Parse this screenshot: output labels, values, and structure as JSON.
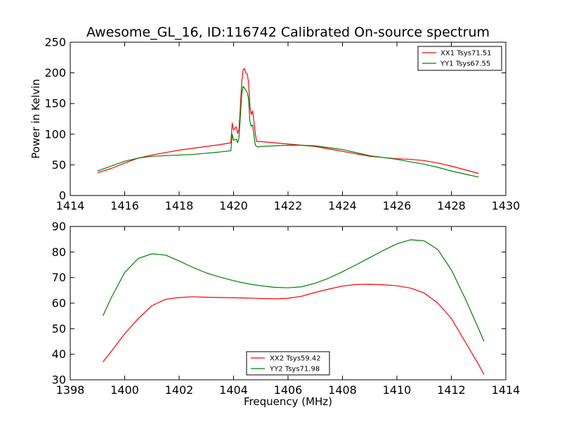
{
  "chart_data": [
    {
      "type": "line",
      "title": "Awesome_GL_16, ID:116742 Calibrated On-source spectrum",
      "xlabel": "",
      "ylabel": "Power in Kelvin",
      "xlim": [
        1414,
        1430
      ],
      "ylim": [
        0,
        250
      ],
      "xticks": [
        "1414",
        "1416",
        "1418",
        "1420",
        "1422",
        "1424",
        "1426",
        "1428",
        "1430"
      ],
      "yticks": [
        "0",
        "50",
        "100",
        "150",
        "200",
        "250"
      ],
      "grid": false,
      "legend_position": "top-right",
      "series": [
        {
          "name": "XX1 Tsys71.51",
          "color": "#ff0000",
          "x": [
            1415.0,
            1415.5,
            1416.0,
            1416.5,
            1417.0,
            1417.5,
            1418.0,
            1418.5,
            1419.0,
            1419.5,
            1419.9,
            1419.95,
            1420.0,
            1420.1,
            1420.15,
            1420.2,
            1420.25,
            1420.3,
            1420.35,
            1420.4,
            1420.45,
            1420.5,
            1420.55,
            1420.6,
            1420.65,
            1420.7,
            1420.75,
            1420.8,
            1420.85,
            1420.9,
            1421.0,
            1421.5,
            1422.0,
            1422.5,
            1423.0,
            1423.5,
            1424.0,
            1424.5,
            1425.0,
            1425.5,
            1426.0,
            1426.5,
            1427.0,
            1427.5,
            1428.0,
            1428.5,
            1429.0
          ],
          "y": [
            37,
            44,
            53,
            61,
            66,
            70,
            74,
            77,
            80,
            83,
            86,
            118,
            107,
            112,
            101,
            108,
            145,
            185,
            205,
            207,
            200,
            198,
            185,
            145,
            132,
            138,
            120,
            100,
            88,
            88,
            88,
            86,
            84,
            82,
            80,
            76,
            72,
            68,
            64,
            62,
            60,
            59,
            57,
            53,
            48,
            42,
            36
          ]
        },
        {
          "name": "YY1 Tsys67.55",
          "color": "#008000",
          "x": [
            1415.0,
            1415.5,
            1416.0,
            1416.5,
            1417.0,
            1417.5,
            1418.0,
            1418.5,
            1419.0,
            1419.5,
            1419.9,
            1419.95,
            1420.0,
            1420.1,
            1420.15,
            1420.2,
            1420.25,
            1420.3,
            1420.35,
            1420.4,
            1420.45,
            1420.5,
            1420.55,
            1420.6,
            1420.65,
            1420.7,
            1420.75,
            1420.8,
            1420.85,
            1420.9,
            1421.0,
            1421.5,
            1422.0,
            1422.5,
            1423.0,
            1423.5,
            1424.0,
            1424.5,
            1425.0,
            1425.5,
            1426.0,
            1426.5,
            1427.0,
            1427.5,
            1428.0,
            1428.5,
            1429.0
          ],
          "y": [
            40,
            48,
            56,
            61,
            64,
            65,
            66,
            67,
            69,
            71,
            73,
            100,
            90,
            92,
            86,
            95,
            130,
            165,
            178,
            175,
            172,
            168,
            158,
            120,
            113,
            115,
            98,
            82,
            80,
            79,
            80,
            81,
            82,
            82,
            81,
            78,
            75,
            70,
            65,
            62,
            59,
            55,
            51,
            46,
            40,
            35,
            30
          ]
        }
      ]
    },
    {
      "type": "line",
      "title": "",
      "xlabel": "Frequency (MHz)",
      "ylabel": "",
      "xlim": [
        1398,
        1414
      ],
      "ylim": [
        30,
        90
      ],
      "xticks": [
        "1398",
        "1400",
        "1402",
        "1404",
        "1406",
        "1408",
        "1410",
        "1412",
        "1414"
      ],
      "yticks": [
        "30",
        "40",
        "50",
        "60",
        "70",
        "80",
        "90"
      ],
      "grid": false,
      "legend_position": "bottom-center",
      "series": [
        {
          "name": "XX2 Tsys59.42",
          "color": "#ff0000",
          "x": [
            1399.2,
            1399.5,
            1400.0,
            1400.5,
            1401.0,
            1401.5,
            1402.0,
            1402.5,
            1403.0,
            1403.5,
            1404.0,
            1404.5,
            1405.0,
            1405.5,
            1406.0,
            1406.5,
            1407.0,
            1407.5,
            1408.0,
            1408.5,
            1409.0,
            1409.5,
            1410.0,
            1410.5,
            1411.0,
            1411.5,
            1412.0,
            1412.5,
            1413.0,
            1413.2
          ],
          "y": [
            37,
            41,
            48,
            54,
            59,
            61.5,
            62.2,
            62.5,
            62.3,
            62.2,
            62.1,
            62.0,
            61.8,
            61.7,
            61.9,
            62.7,
            64.2,
            65.5,
            66.7,
            67.3,
            67.4,
            67.2,
            66.8,
            65.9,
            64.0,
            60.0,
            54.0,
            45.0,
            36.0,
            32.0
          ]
        },
        {
          "name": "YY2 Tsys71.98",
          "color": "#008000",
          "x": [
            1399.2,
            1399.5,
            1400.0,
            1400.5,
            1401.0,
            1401.5,
            1402.0,
            1402.5,
            1403.0,
            1403.5,
            1404.0,
            1404.5,
            1405.0,
            1405.5,
            1406.0,
            1406.5,
            1407.0,
            1407.5,
            1408.0,
            1408.5,
            1409.0,
            1409.5,
            1410.0,
            1410.5,
            1411.0,
            1411.5,
            1412.0,
            1412.5,
            1413.0,
            1413.2
          ],
          "y": [
            55,
            62,
            72,
            77.5,
            79.3,
            78.8,
            76.5,
            74.0,
            71.8,
            70.2,
            68.8,
            67.6,
            66.8,
            66.2,
            66.0,
            66.4,
            67.8,
            69.8,
            72.3,
            75.0,
            77.8,
            80.6,
            83.2,
            84.8,
            84.4,
            81.0,
            73.0,
            62.0,
            50.0,
            45.0
          ]
        }
      ]
    }
  ]
}
